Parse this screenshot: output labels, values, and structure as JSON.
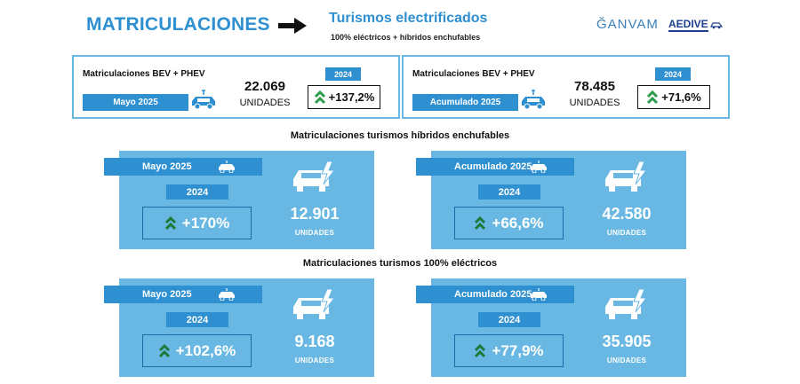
{
  "header": {
    "title": "MATRICULACIONES",
    "subtitle": "Turismos electrificados",
    "subtitle_detail": "100% eléctricos + híbridos enchufables",
    "logo_ganvam": "ĞANVAM",
    "logo_aedive": "AEDIVE"
  },
  "top_cards": [
    {
      "label": "Matriculaciones BEV + PHEV",
      "period": "Mayo 2025",
      "value": "22.069",
      "units": "UNIDADES",
      "year": "2024",
      "change": "+137,2%"
    },
    {
      "label": "Matriculaciones BEV + PHEV",
      "period": "Acumulado 2025",
      "value": "78.485",
      "units": "UNIDADES",
      "year": "2024",
      "change": "+71,6%"
    }
  ],
  "sections": [
    {
      "title": "Matriculaciones turismos híbridos enchufables",
      "panels": [
        {
          "period": "Mayo 2025",
          "year": "2024",
          "change": "+170%",
          "value": "12.901",
          "units": "UNIDADES"
        },
        {
          "period": "Acumulado 2025",
          "year": "2024",
          "change": "+66,6%",
          "value": "42.580",
          "units": "UNIDADES"
        }
      ]
    },
    {
      "title": "Matriculaciones turismos 100% eléctricos",
      "panels": [
        {
          "period": "Mayo 2025",
          "year": "2024",
          "change": "+102,6%",
          "value": "9.168",
          "units": "UNIDADES"
        },
        {
          "period": "Acumulado 2025",
          "year": "2024",
          "change": "+77,9%",
          "value": "35.905",
          "units": "UNIDADES"
        }
      ]
    }
  ],
  "icons": {
    "arrow": "right-arrow-icon",
    "car": "electric-car-icon",
    "growth": "double-chevron-up-icon"
  },
  "colors": {
    "primary_blue": "#2e8fd1",
    "light_blue": "#69b8e4",
    "growth_green": "#2a9d4a"
  }
}
